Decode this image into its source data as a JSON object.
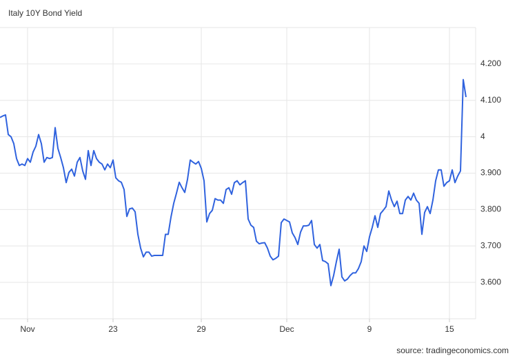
{
  "chart_data": {
    "type": "line",
    "title": "Italy 10Y Bond Yield",
    "source": "source: tradingeconomics.com",
    "categories": [
      null,
      null,
      null,
      null,
      null,
      null,
      null,
      null,
      null,
      null,
      "Nov",
      null,
      null,
      null,
      null,
      null,
      null,
      null,
      null,
      null,
      null,
      null,
      null,
      null,
      null,
      null,
      null,
      null,
      null,
      null,
      null,
      null,
      null,
      null,
      null,
      null,
      null,
      null,
      null,
      null,
      null,
      "23",
      null,
      null,
      null,
      null,
      null,
      null,
      null,
      null,
      null,
      null,
      null,
      null,
      null,
      null,
      null,
      null,
      null,
      null,
      null,
      null,
      null,
      null,
      null,
      null,
      null,
      null,
      null,
      null,
      null,
      null,
      null,
      "29",
      null,
      null,
      null,
      null,
      null,
      null,
      null,
      null,
      null,
      null,
      null,
      null,
      null,
      null,
      null,
      null,
      null,
      null,
      null,
      null,
      null,
      null,
      null,
      null,
      null,
      null,
      null,
      null,
      null,
      null,
      "Dec",
      null,
      null,
      null,
      null,
      null,
      null,
      null,
      null,
      null,
      null,
      null,
      null,
      null,
      null,
      null,
      null,
      null,
      null,
      null,
      null,
      null,
      null,
      null,
      null,
      null,
      null,
      null,
      null,
      null,
      "9",
      null,
      null,
      null,
      null,
      null,
      null,
      null,
      null,
      null,
      null,
      null,
      null,
      null,
      null,
      null,
      null,
      null,
      null,
      null,
      null,
      null,
      null,
      null,
      null,
      null,
      null,
      null,
      null,
      "15",
      null,
      null,
      null,
      null,
      null,
      null
    ],
    "series": [
      {
        "name": "Italy 10Y",
        "color": "#2f62de",
        "values": [
          4.053,
          4.057,
          4.06,
          4.006,
          4.0,
          3.981,
          3.94,
          3.921,
          3.925,
          3.921,
          3.94,
          3.93,
          3.958,
          3.974,
          4.006,
          3.981,
          3.93,
          3.943,
          3.94,
          3.943,
          4.025,
          3.968,
          3.943,
          3.915,
          3.874,
          3.902,
          3.911,
          3.892,
          3.93,
          3.943,
          3.906,
          3.883,
          3.962,
          3.921,
          3.962,
          3.94,
          3.93,
          3.925,
          3.909,
          3.925,
          3.915,
          3.936,
          3.887,
          3.879,
          3.875,
          3.855,
          3.781,
          3.802,
          3.804,
          3.794,
          3.732,
          3.694,
          3.67,
          3.683,
          3.683,
          3.672,
          3.674,
          3.674,
          3.674,
          3.674,
          3.732,
          3.732,
          3.779,
          3.817,
          3.845,
          3.875,
          3.86,
          3.847,
          3.883,
          3.936,
          3.93,
          3.925,
          3.932,
          3.913,
          3.879,
          3.766,
          3.789,
          3.798,
          3.83,
          3.826,
          3.826,
          3.817,
          3.855,
          3.86,
          3.842,
          3.874,
          3.879,
          3.868,
          3.874,
          3.879,
          3.774,
          3.757,
          3.751,
          3.713,
          3.706,
          3.708,
          3.709,
          3.694,
          3.672,
          3.662,
          3.666,
          3.672,
          3.764,
          3.774,
          3.77,
          3.766,
          3.736,
          3.723,
          3.704,
          3.738,
          3.755,
          3.755,
          3.757,
          3.77,
          3.704,
          3.694,
          3.704,
          3.66,
          3.657,
          3.651,
          3.591,
          3.619,
          3.657,
          3.691,
          3.615,
          3.604,
          3.609,
          3.619,
          3.626,
          3.626,
          3.638,
          3.657,
          3.7,
          3.685,
          3.725,
          3.751,
          3.783,
          3.751,
          3.789,
          3.798,
          3.808,
          3.851,
          3.826,
          3.808,
          3.823,
          3.789,
          3.789,
          3.826,
          3.836,
          3.826,
          3.845,
          3.826,
          3.817,
          3.732,
          3.792,
          3.808,
          3.789,
          3.826,
          3.879,
          3.909,
          3.909,
          3.864,
          3.874,
          3.879,
          3.909,
          3.874,
          3.892,
          3.906,
          4.157,
          4.109
        ]
      }
    ],
    "ylim": [
      3.5,
      4.3
    ],
    "yticks": [
      {
        "value": 3.6,
        "label": "3.600"
      },
      {
        "value": 3.7,
        "label": "3.700"
      },
      {
        "value": 3.8,
        "label": "3.800"
      },
      {
        "value": 3.9,
        "label": "3.900"
      },
      4,
      {
        "value": 4.1,
        "label": "4.100"
      },
      {
        "value": 4.2,
        "label": "4.200"
      }
    ],
    "grid": true
  }
}
